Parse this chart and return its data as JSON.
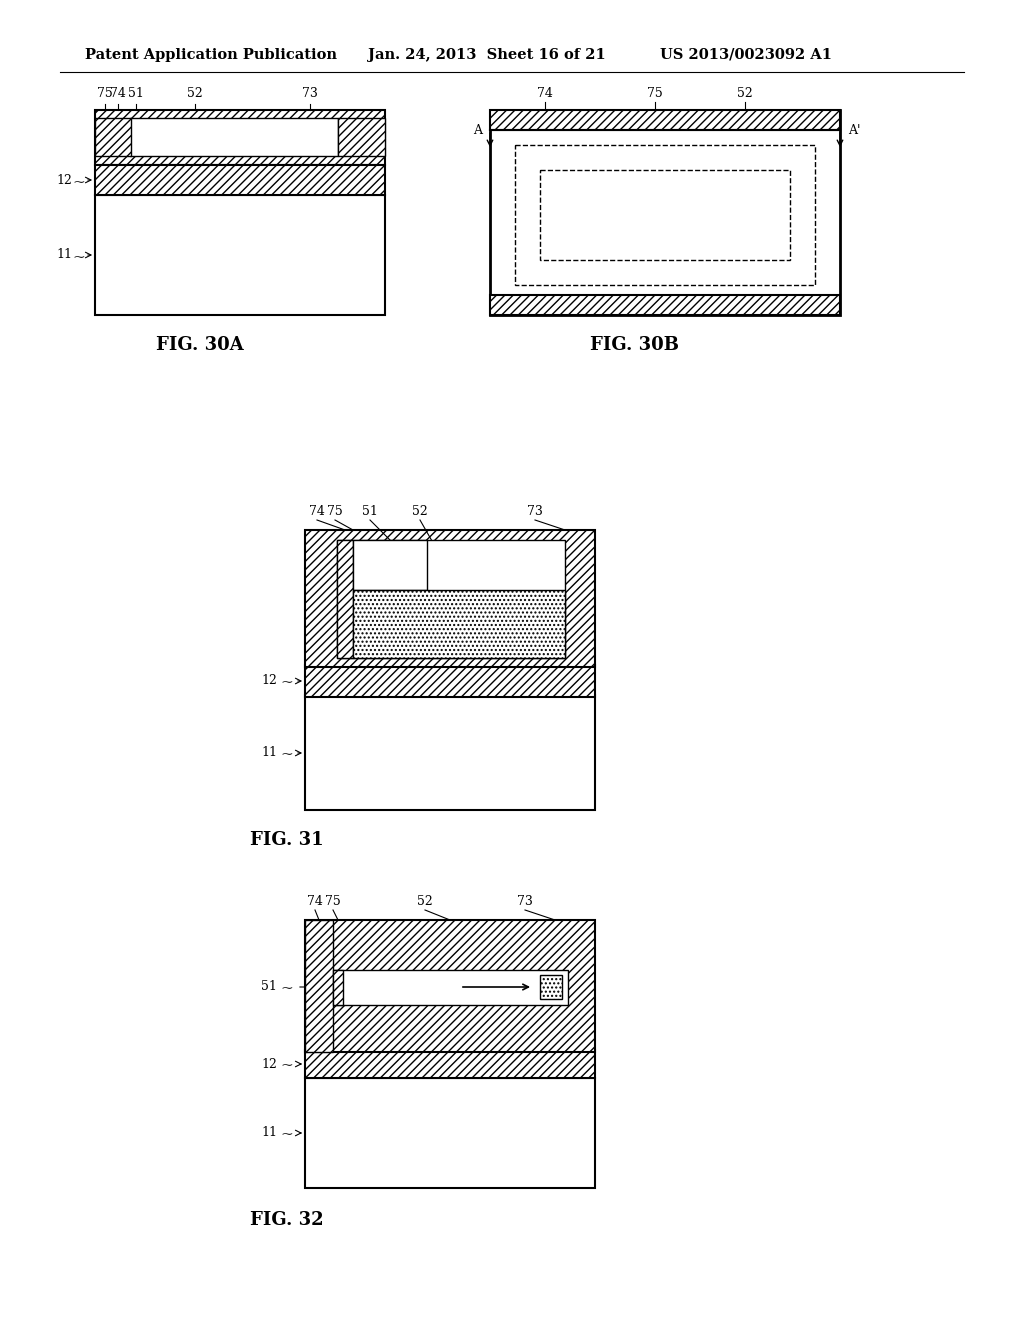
{
  "bg_color": "#ffffff",
  "header_text": "Patent Application Publication",
  "header_date": "Jan. 24, 2013  Sheet 16 of 21",
  "header_patent": "US 2013/0023092 A1",
  "fig30A_label": "FIG. 30A",
  "fig30B_label": "FIG. 30B",
  "fig31_label": "FIG. 31",
  "fig32_label": "FIG. 32"
}
